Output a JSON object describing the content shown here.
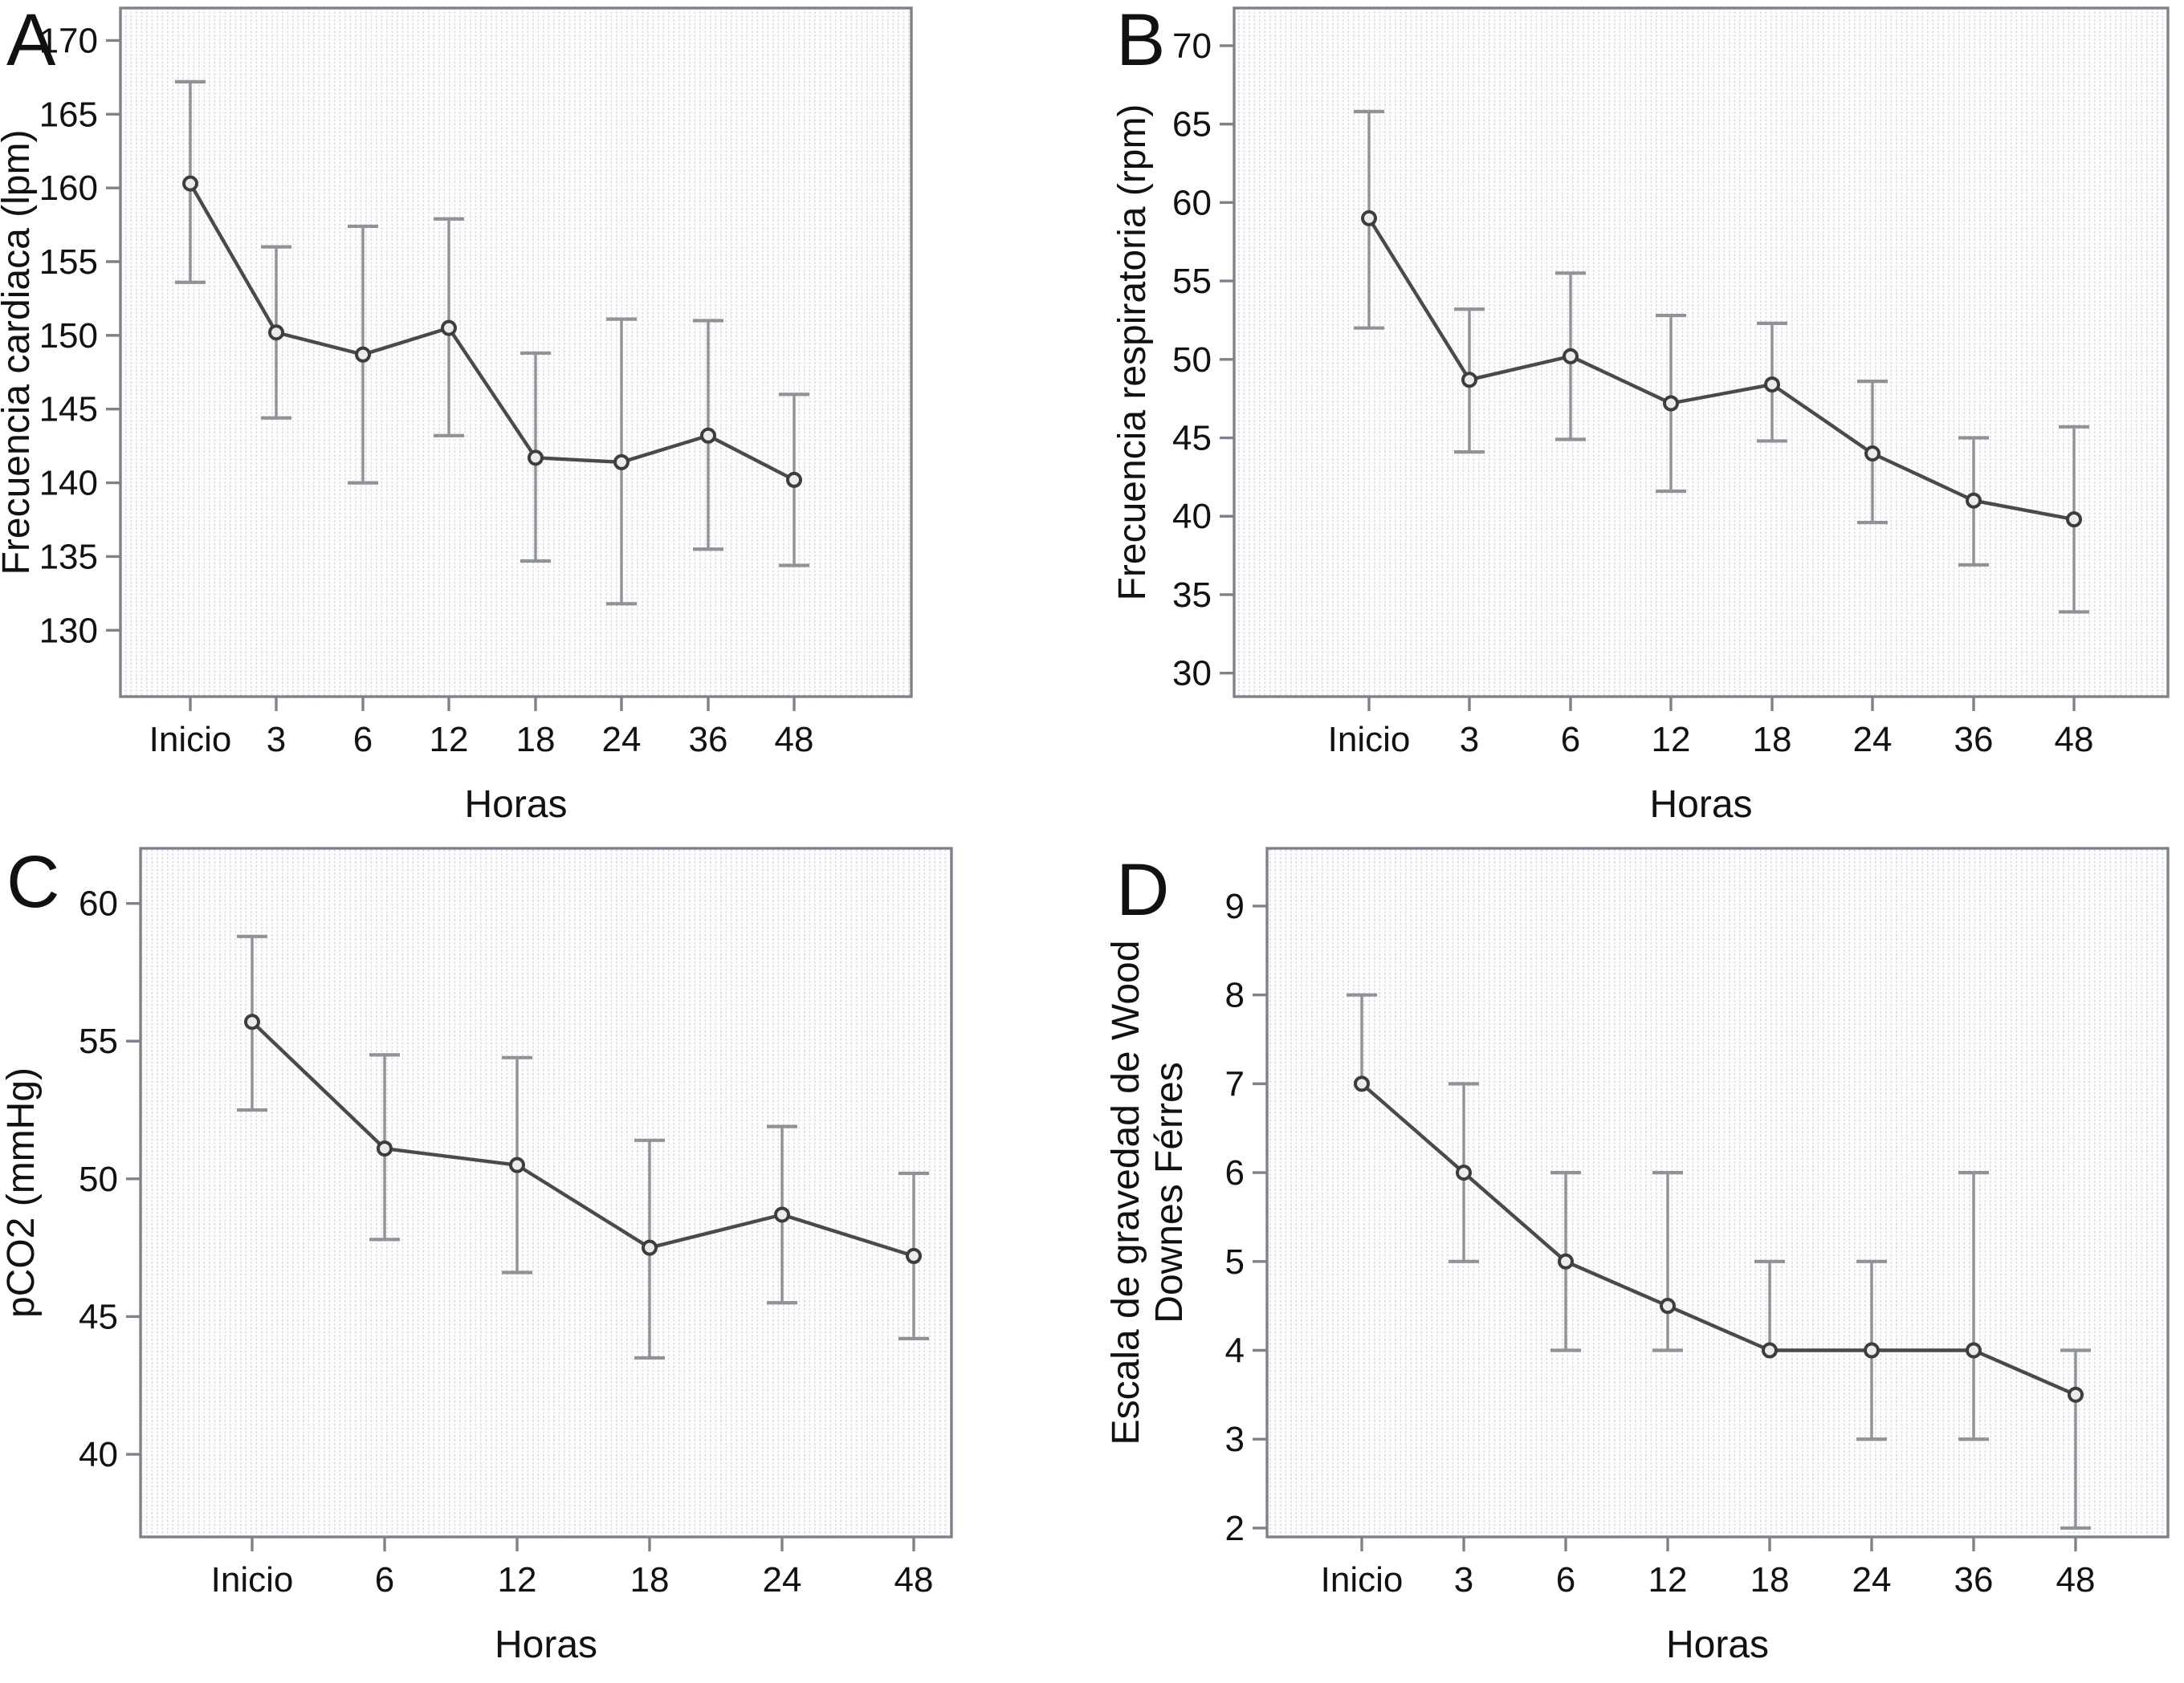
{
  "figure": {
    "description": "Four-panel clinical time-course figure with mean values and error bars",
    "x_axis_title": "Horas",
    "panel_letters": [
      "A",
      "B",
      "C",
      "D"
    ]
  },
  "colors": {
    "series_line": "#4a4a4a",
    "marker_stroke": "#3d3d3d",
    "marker_fill": "#ebebeb",
    "error_bar": "#8f9397",
    "frame": "#7d828a",
    "text": "#111111",
    "plot_background": "#fdfdfe",
    "texture_dot": "#d9dde1"
  },
  "chart_data": [
    {
      "type": "line",
      "panel_letter": "A",
      "xlabel": "Horas",
      "ylabel": "Frecuencia cardiaca (lpm)",
      "ylabel_lines": [
        "Frecuencia cardiaca (lpm)"
      ],
      "categories": [
        "Inicio",
        "3",
        "6",
        "12",
        "18",
        "24",
        "36",
        "48"
      ],
      "values": [
        160.3,
        150.2,
        148.7,
        150.5,
        141.7,
        141.4,
        143.2,
        140.2
      ],
      "error_low": [
        153.6,
        144.4,
        140.0,
        143.2,
        134.7,
        131.8,
        135.5,
        134.4
      ],
      "error_high": [
        167.2,
        156.0,
        157.4,
        157.9,
        148.8,
        151.1,
        151.0,
        146.0
      ],
      "ylim": [
        125.5,
        172.2
      ],
      "yticks": [
        130,
        135,
        140,
        145,
        150,
        155,
        160,
        165,
        170
      ],
      "error_bars": true,
      "marker": "open-circle",
      "legend": "none",
      "grid": "fine vertical dotted texture"
    },
    {
      "type": "line",
      "panel_letter": "B",
      "xlabel": "Horas",
      "ylabel": "Frecuencia respiratoria (rpm)",
      "ylabel_lines": [
        "Frecuencia respiratoria (rpm)"
      ],
      "categories": [
        "Inicio",
        "3",
        "6",
        "12",
        "18",
        "24",
        "36",
        "48"
      ],
      "values": [
        59.0,
        48.7,
        50.2,
        47.2,
        48.4,
        44.0,
        41.0,
        39.8
      ],
      "error_low": [
        52.0,
        44.1,
        44.9,
        41.6,
        44.8,
        39.6,
        36.9,
        33.9
      ],
      "error_high": [
        65.8,
        53.2,
        55.5,
        52.8,
        52.3,
        48.6,
        45.0,
        45.7
      ],
      "ylim": [
        28.5,
        72.4
      ],
      "yticks": [
        30,
        35,
        40,
        45,
        50,
        55,
        60,
        65,
        70
      ],
      "error_bars": true,
      "marker": "open-circle",
      "legend": "none",
      "grid": "fine vertical dotted texture"
    },
    {
      "type": "line",
      "panel_letter": "C",
      "xlabel": "Horas",
      "ylabel": "pCO2 (mmHg)",
      "ylabel_lines": [
        "pCO2 (mmHg)"
      ],
      "categories": [
        "Inicio",
        "6",
        "12",
        "18",
        "24",
        "48"
      ],
      "values": [
        55.7,
        51.1,
        50.5,
        47.5,
        48.7,
        47.2
      ],
      "error_low": [
        52.5,
        47.8,
        46.6,
        43.5,
        45.5,
        44.2
      ],
      "error_high": [
        58.8,
        54.5,
        54.4,
        51.4,
        51.9,
        50.2
      ],
      "ylim": [
        37.0,
        62.0
      ],
      "yticks": [
        40,
        45,
        50,
        55,
        60
      ],
      "error_bars": true,
      "marker": "open-circle",
      "legend": "none",
      "grid": "fine vertical dotted texture"
    },
    {
      "type": "line",
      "panel_letter": "D",
      "xlabel": "Horas",
      "ylabel": "Escala de gravedad de Wood Downes Férres",
      "ylabel_lines": [
        "Escala de gravedad de Wood",
        "Downes Férres"
      ],
      "categories": [
        "Inicio",
        "3",
        "6",
        "12",
        "18",
        "24",
        "36",
        "48"
      ],
      "values": [
        7.0,
        6.0,
        5.0,
        4.5,
        4.0,
        4.0,
        4.0,
        3.5
      ],
      "error_low": [
        7.0,
        5.0,
        4.0,
        4.0,
        4.0,
        3.0,
        3.0,
        2.0
      ],
      "error_high": [
        8.0,
        7.0,
        6.0,
        6.0,
        5.0,
        5.0,
        6.0,
        4.0
      ],
      "ylim": [
        1.9,
        9.65
      ],
      "yticks": [
        2,
        3,
        4,
        5,
        6,
        7,
        8,
        9
      ],
      "error_bars": true,
      "marker": "open-circle",
      "legend": "none",
      "grid": "fine vertical dotted texture"
    }
  ]
}
